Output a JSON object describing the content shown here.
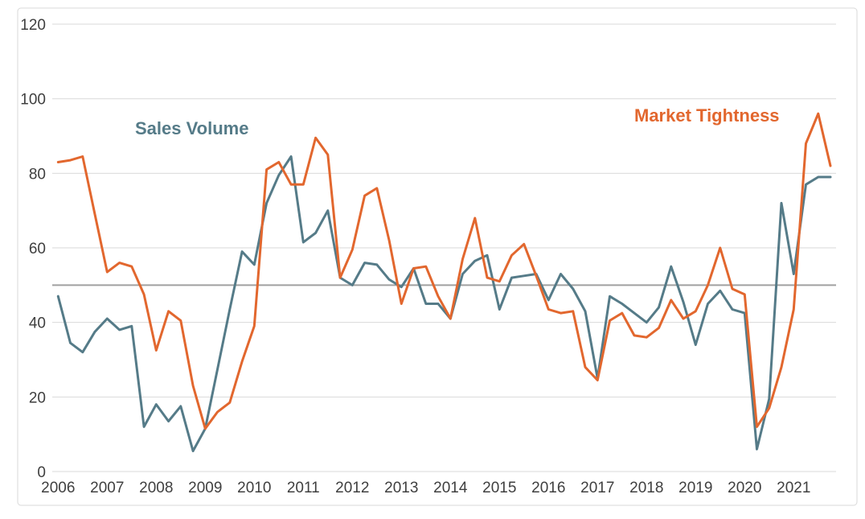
{
  "chart_data": {
    "type": "line",
    "title": "",
    "frequency": "quarterly",
    "x_start_year": 2006,
    "x_tick_labels": [
      "2006",
      "2007",
      "2008",
      "2009",
      "2010",
      "2011",
      "2012",
      "2013",
      "2014",
      "2015",
      "2016",
      "2017",
      "2018",
      "2019",
      "2020",
      "2021"
    ],
    "y_ticks": [
      0,
      20,
      40,
      60,
      80,
      100,
      120
    ],
    "ylim": [
      0,
      120
    ],
    "reference_line": 50,
    "grid": "horizontal",
    "legend_position": "inline-annotations",
    "series": [
      {
        "name": "Sales Volume",
        "color": "#557b88",
        "values": [
          47,
          34.5,
          32,
          37.5,
          41,
          38,
          39,
          12,
          18,
          13.5,
          17.5,
          5.5,
          11.5,
          27.5,
          43.5,
          59,
          55.5,
          72,
          79.5,
          84.5,
          61.5,
          64,
          70,
          52,
          50,
          56,
          55.5,
          51.5,
          49.5,
          54.5,
          45,
          45,
          41,
          53,
          56.5,
          58,
          43.5,
          52,
          52.5,
          53,
          46,
          53,
          49,
          43,
          25,
          47,
          45,
          42.5,
          40,
          44,
          55,
          45.5,
          34,
          45,
          48.5,
          43.5,
          42.5,
          6,
          19.5,
          72,
          53,
          77,
          79,
          79
        ]
      },
      {
        "name": "Market Tightness",
        "color": "#e2672e",
        "values": [
          83,
          83.5,
          84.5,
          69,
          53.5,
          56,
          55,
          47.5,
          32.5,
          43,
          40.5,
          23,
          11.5,
          16,
          18.5,
          29.5,
          39,
          81,
          83,
          77,
          77,
          89.5,
          85,
          52,
          59.5,
          74,
          76,
          62,
          45,
          54.5,
          55,
          47,
          41,
          57,
          68,
          52,
          51,
          58,
          61,
          52.5,
          43.5,
          42.5,
          43,
          28,
          24.5,
          40.5,
          42.5,
          36.5,
          36,
          38.5,
          46,
          41,
          43,
          50,
          60,
          49,
          47.5,
          12,
          17,
          28,
          43.5,
          88,
          96,
          82
        ]
      }
    ]
  },
  "annotations": {
    "sales_volume_label": "Sales Volume",
    "market_tightness_label": "Market Tightness"
  },
  "colors": {
    "sales_volume": "#557b88",
    "market_tightness": "#e2672e",
    "gridline": "#d9d9d9",
    "reference_line": "#a0a0a0",
    "axis_text": "#3f3f3f",
    "frame_border": "#d9d9d9",
    "background": "#ffffff"
  }
}
